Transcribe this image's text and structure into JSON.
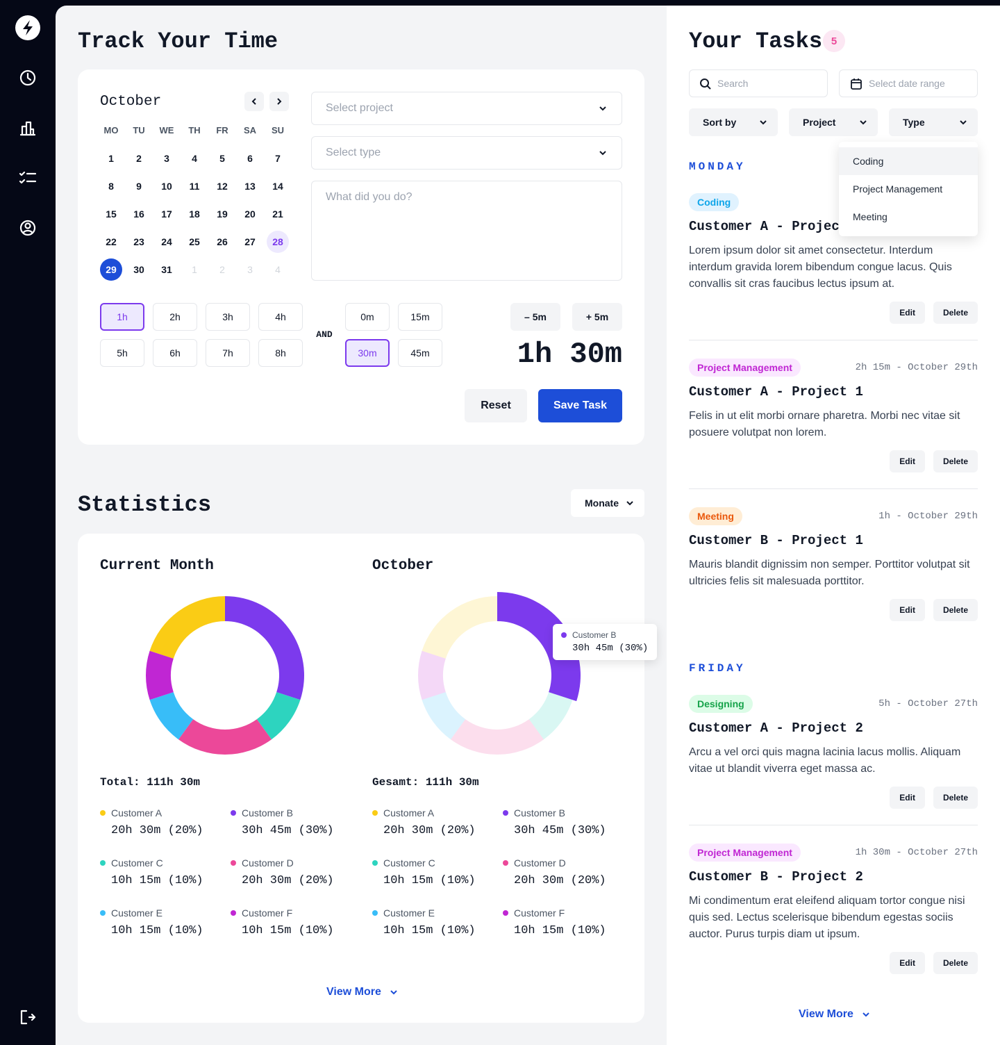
{
  "tracker": {
    "title": "Track Your Time",
    "calendar": {
      "month": "October",
      "weekdays": [
        "MO",
        "TU",
        "WE",
        "TH",
        "FR",
        "SA",
        "SU"
      ],
      "days": [
        1,
        2,
        3,
        4,
        5,
        6,
        7,
        8,
        9,
        10,
        11,
        12,
        13,
        14,
        15,
        16,
        17,
        18,
        19,
        20,
        21,
        22,
        23,
        24,
        25,
        26,
        27,
        28,
        29,
        30,
        31
      ],
      "next_days": [
        1,
        2,
        3,
        4
      ],
      "selected_day": 29,
      "highlighted_day": 28
    },
    "project_placeholder": "Select project",
    "type_placeholder": "Select type",
    "description_placeholder": "What did you do?",
    "hours": [
      {
        "label": "1h",
        "selected": true
      },
      {
        "label": "2h",
        "selected": false
      },
      {
        "label": "3h",
        "selected": false
      },
      {
        "label": "4h",
        "selected": false
      },
      {
        "label": "5h",
        "selected": false
      },
      {
        "label": "6h",
        "selected": false
      },
      {
        "label": "7h",
        "selected": false
      },
      {
        "label": "8h",
        "selected": false
      }
    ],
    "joiner": "AND",
    "minutes": [
      {
        "label": "0m",
        "selected": false
      },
      {
        "label": "15m",
        "selected": false
      },
      {
        "label": "30m",
        "selected": true
      },
      {
        "label": "45m",
        "selected": false
      }
    ],
    "decrement": "– 5m",
    "increment": "+ 5m",
    "duration": "1h 30m",
    "reset": "Reset",
    "save": "Save Task"
  },
  "statistics": {
    "title": "Statistics",
    "period": "Monate",
    "charts": [
      {
        "title": "Current Month",
        "total": "Total: 111h 30m",
        "items": [
          {
            "name": "Customer A",
            "value": 20,
            "value_label": "20h 30m (20%)",
            "color": "#facc15"
          },
          {
            "name": "Customer B",
            "value": 30,
            "value_label": "30h 45m (30%)",
            "color": "#7c3aed"
          },
          {
            "name": "Customer C",
            "value": 10,
            "value_label": "10h 15m (10%)",
            "color": "#2dd4bf"
          },
          {
            "name": "Customer D",
            "value": 20,
            "value_label": "20h 30m (20%)",
            "color": "#ec4899"
          },
          {
            "name": "Customer E",
            "value": 10,
            "value_label": "10h 15m (10%)",
            "color": "#38bdf8"
          },
          {
            "name": "Customer F",
            "value": 10,
            "value_label": "10h 15m (10%)",
            "color": "#c026d3"
          }
        ]
      },
      {
        "title": "October",
        "total": "Gesamt: 111h 30m",
        "items": [
          {
            "name": "Customer A",
            "value": 20,
            "value_label": "20h 30m (20%)",
            "color": "#facc15"
          },
          {
            "name": "Customer B",
            "value": 30,
            "value_label": "30h 45m (30%)",
            "color": "#7c3aed"
          },
          {
            "name": "Customer C",
            "value": 10,
            "value_label": "10h 15m (10%)",
            "color": "#2dd4bf"
          },
          {
            "name": "Customer D",
            "value": 20,
            "value_label": "20h 30m (20%)",
            "color": "#ec4899"
          },
          {
            "name": "Customer E",
            "value": 10,
            "value_label": "10h 15m (10%)",
            "color": "#38bdf8"
          },
          {
            "name": "Customer F",
            "value": 10,
            "value_label": "10h 15m (10%)",
            "color": "#c026d3"
          }
        ],
        "tooltip": {
          "name": "Customer B",
          "label": "30h 45m (30%)"
        }
      }
    ],
    "view_more": "View More"
  },
  "tasks": {
    "title": "Your Tasks",
    "count": 5,
    "search_placeholder": "Search",
    "date_placeholder": "Select date range",
    "filters": [
      "Sort by",
      "Project",
      "Type"
    ],
    "type_options": [
      "Coding",
      "Project Management",
      "Meeting"
    ],
    "actions": {
      "edit": "Edit",
      "delete": "Delete"
    },
    "groups": [
      {
        "day": "MONDAY",
        "items": [
          {
            "tag": "Coding",
            "tag_color": "#0ea5e9",
            "tag_background": "#e0f2fe",
            "title": "Customer A - Project",
            "text": "Lorem ipsum dolor sit amet consectetur. Interdum interdum gravida lorem bibendum congue lacus. Quis convallis sit cras faucibus lectus ipsum at."
          },
          {
            "tag": "Project Management",
            "tag_color": "#c026d3",
            "tag_background": "#fae8ff",
            "meta": "2h 15m - October 29th",
            "title": "Customer A - Project 1",
            "text": "Felis in ut elit morbi ornare pharetra. Morbi nec vitae sit posuere volutpat non lorem."
          },
          {
            "tag": "Meeting",
            "tag_color": "#ea580c",
            "tag_background": "#ffedd5",
            "meta": "1h - October 29th",
            "title": "Customer B - Project 1",
            "text": "Mauris blandit dignissim non semper. Porttitor volutpat sit ultricies felis sit malesuada porttitor."
          }
        ]
      },
      {
        "day": "FRIDAY",
        "items": [
          {
            "tag": "Designing",
            "tag_color": "#16a34a",
            "tag_background": "#dcfce7",
            "meta": "5h - October 27th",
            "title": "Customer A - Project 2",
            "text": "Arcu a vel orci quis magna lacinia lacus mollis. Aliquam vitae ut blandit viverra eget massa ac."
          },
          {
            "tag": "Project Management",
            "tag_color": "#c026d3",
            "tag_background": "#fae8ff",
            "meta": "1h 30m - October 27th",
            "title": "Customer B - Project 2",
            "text": "Mi condimentum erat eleifend aliquam tortor congue nisi quis sed. Lectus scelerisque bibendum egestas sociis auctor. Purus turpis diam ut ipsum."
          }
        ]
      }
    ],
    "view_more": "View More"
  }
}
